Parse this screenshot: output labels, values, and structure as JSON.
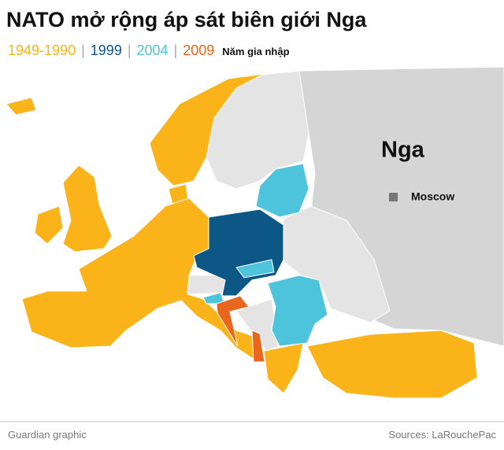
{
  "title": "NATO mở rộng áp sát biên giới Nga",
  "legend": {
    "items": [
      {
        "label": "1949-1990",
        "color": "#fab41a"
      },
      {
        "label": "1999",
        "color": "#0d5787"
      },
      {
        "label": "2004",
        "color": "#4ec3dc"
      },
      {
        "label": "2009",
        "color": "#e8661e"
      }
    ],
    "separator": "|",
    "caption": "Năm gia nhập"
  },
  "map": {
    "labels": [
      {
        "text": "Nga"
      },
      {
        "text": "Moscow"
      }
    ]
  },
  "footer": {
    "credit": "Guardian graphic",
    "source": "Sources: LaRouchePac"
  }
}
